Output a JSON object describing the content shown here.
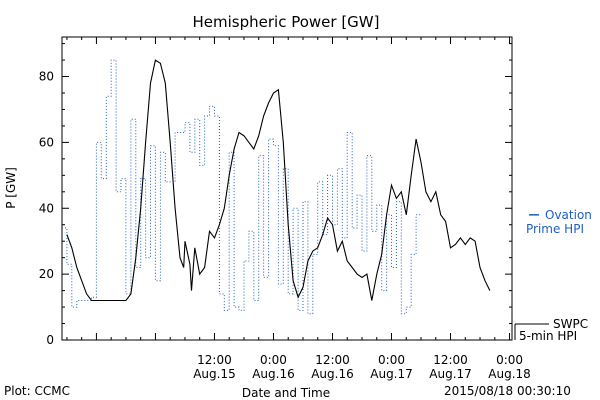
{
  "chart_data": {
    "type": "line",
    "title": "Hemispheric Power [GW]",
    "xlabel": "Date and Time",
    "ylabel": "P [GW]",
    "xlim": [
      "2015-08-14T05:00",
      "2015-08-18T00:30"
    ],
    "ylim": [
      0,
      92
    ],
    "yticks": [
      0,
      20,
      40,
      60,
      80
    ],
    "xticks": [
      {
        "t": "2015-08-15T12:00",
        "time": "12:00",
        "date": "Aug.15"
      },
      {
        "t": "2015-08-16T00:00",
        "time": "0:00",
        "date": "Aug.16"
      },
      {
        "t": "2015-08-16T12:00",
        "time": "12:00",
        "date": "Aug.16"
      },
      {
        "t": "2015-08-17T00:00",
        "time": "0:00",
        "date": "Aug.17"
      },
      {
        "t": "2015-08-17T12:00",
        "time": "12:00",
        "date": "Aug.17"
      },
      {
        "t": "2015-08-18T00:00",
        "time": "0:00",
        "date": "Aug.18"
      }
    ],
    "series": [
      {
        "name": "SWPC 5-min HPI",
        "color": "#000000",
        "style": "solid",
        "legend_lines": [
          "SWPC",
          "5-min HPI"
        ],
        "points": [
          [
            "2015-08-14T06:00",
            32
          ],
          [
            "2015-08-14T07:00",
            28
          ],
          [
            "2015-08-14T08:00",
            22
          ],
          [
            "2015-08-14T09:00",
            18
          ],
          [
            "2015-08-14T10:00",
            14
          ],
          [
            "2015-08-14T11:00",
            12
          ],
          [
            "2015-08-14T13:00",
            12
          ],
          [
            "2015-08-14T15:00",
            12
          ],
          [
            "2015-08-14T17:00",
            12
          ],
          [
            "2015-08-14T18:00",
            12
          ],
          [
            "2015-08-14T19:00",
            14
          ],
          [
            "2015-08-14T20:00",
            25
          ],
          [
            "2015-08-14T21:00",
            40
          ],
          [
            "2015-08-14T22:00",
            60
          ],
          [
            "2015-08-14T23:00",
            78
          ],
          [
            "2015-08-15T00:00",
            85
          ],
          [
            "2015-08-15T01:00",
            84
          ],
          [
            "2015-08-15T02:00",
            78
          ],
          [
            "2015-08-15T03:00",
            60
          ],
          [
            "2015-08-15T04:00",
            40
          ],
          [
            "2015-08-15T05:00",
            25
          ],
          [
            "2015-08-15T05:45",
            22
          ],
          [
            "2015-08-15T06:00",
            30
          ],
          [
            "2015-08-15T07:00",
            23
          ],
          [
            "2015-08-15T07:20",
            15
          ],
          [
            "2015-08-15T08:00",
            28
          ],
          [
            "2015-08-15T09:00",
            20
          ],
          [
            "2015-08-15T10:00",
            22
          ],
          [
            "2015-08-15T11:00",
            33
          ],
          [
            "2015-08-15T12:00",
            31
          ],
          [
            "2015-08-15T13:00",
            35
          ],
          [
            "2015-08-15T14:00",
            40
          ],
          [
            "2015-08-15T15:00",
            50
          ],
          [
            "2015-08-15T16:00",
            58
          ],
          [
            "2015-08-15T17:00",
            63
          ],
          [
            "2015-08-15T18:00",
            62
          ],
          [
            "2015-08-15T19:00",
            60
          ],
          [
            "2015-08-15T20:00",
            58
          ],
          [
            "2015-08-15T21:00",
            62
          ],
          [
            "2015-08-15T22:00",
            68
          ],
          [
            "2015-08-15T23:00",
            72
          ],
          [
            "2015-08-16T00:00",
            75
          ],
          [
            "2015-08-16T01:00",
            76
          ],
          [
            "2015-08-16T02:00",
            60
          ],
          [
            "2015-08-16T03:00",
            35
          ],
          [
            "2015-08-16T04:00",
            18
          ],
          [
            "2015-08-16T05:00",
            13
          ],
          [
            "2015-08-16T06:00",
            16
          ],
          [
            "2015-08-16T07:00",
            24
          ],
          [
            "2015-08-16T08:00",
            27
          ],
          [
            "2015-08-16T09:00",
            28
          ],
          [
            "2015-08-16T10:00",
            32
          ],
          [
            "2015-08-16T11:00",
            37
          ],
          [
            "2015-08-16T12:00",
            35
          ],
          [
            "2015-08-16T13:00",
            27
          ],
          [
            "2015-08-16T14:00",
            30
          ],
          [
            "2015-08-16T15:00",
            24
          ],
          [
            "2015-08-16T16:00",
            22
          ],
          [
            "2015-08-16T17:00",
            20
          ],
          [
            "2015-08-16T18:00",
            19
          ],
          [
            "2015-08-16T19:00",
            20
          ],
          [
            "2015-08-16T20:00",
            12
          ],
          [
            "2015-08-16T21:00",
            20
          ],
          [
            "2015-08-16T22:00",
            26
          ],
          [
            "2015-08-16T23:00",
            38
          ],
          [
            "2015-08-17T00:00",
            47
          ],
          [
            "2015-08-17T01:00",
            43
          ],
          [
            "2015-08-17T02:00",
            45
          ],
          [
            "2015-08-17T03:00",
            38
          ],
          [
            "2015-08-17T04:00",
            50
          ],
          [
            "2015-08-17T05:00",
            61
          ],
          [
            "2015-08-17T06:00",
            54
          ],
          [
            "2015-08-17T07:00",
            45
          ],
          [
            "2015-08-17T08:00",
            42
          ],
          [
            "2015-08-17T09:00",
            45
          ],
          [
            "2015-08-17T10:00",
            38
          ],
          [
            "2015-08-17T11:00",
            36
          ],
          [
            "2015-08-17T12:00",
            28
          ],
          [
            "2015-08-17T13:00",
            29
          ],
          [
            "2015-08-17T14:00",
            31
          ],
          [
            "2015-08-17T15:00",
            29
          ],
          [
            "2015-08-17T16:00",
            31
          ],
          [
            "2015-08-17T17:00",
            30
          ],
          [
            "2015-08-17T18:00",
            22
          ],
          [
            "2015-08-17T19:00",
            18
          ],
          [
            "2015-08-17T20:00",
            15
          ]
        ]
      },
      {
        "name": "Ovation Prime HPI",
        "color": "#1f5fbf",
        "style": "dotted-step",
        "legend_lines": [
          "Ovation",
          "Prime HPI"
        ],
        "latest_value": 38,
        "points": [
          [
            "2015-08-14T05:00",
            34
          ],
          [
            "2015-08-14T06:00",
            23
          ],
          [
            "2015-08-14T07:00",
            10
          ],
          [
            "2015-08-14T08:00",
            12
          ],
          [
            "2015-08-14T11:00",
            13
          ],
          [
            "2015-08-14T12:00",
            60
          ],
          [
            "2015-08-14T13:00",
            49
          ],
          [
            "2015-08-14T14:00",
            74
          ],
          [
            "2015-08-14T15:00",
            85
          ],
          [
            "2015-08-14T16:00",
            45
          ],
          [
            "2015-08-14T17:00",
            49
          ],
          [
            "2015-08-14T18:00",
            14
          ],
          [
            "2015-08-14T19:00",
            67
          ],
          [
            "2015-08-14T20:00",
            22
          ],
          [
            "2015-08-14T21:00",
            49
          ],
          [
            "2015-08-14T22:00",
            25
          ],
          [
            "2015-08-14T23:00",
            59
          ],
          [
            "2015-08-15T00:00",
            18
          ],
          [
            "2015-08-15T01:00",
            57
          ],
          [
            "2015-08-15T02:00",
            48
          ],
          [
            "2015-08-15T03:00",
            48
          ],
          [
            "2015-08-15T04:00",
            63
          ],
          [
            "2015-08-15T06:00",
            66
          ],
          [
            "2015-08-15T07:00",
            57
          ],
          [
            "2015-08-15T08:00",
            67
          ],
          [
            "2015-08-15T09:00",
            53
          ],
          [
            "2015-08-15T10:00",
            68
          ],
          [
            "2015-08-15T11:00",
            71
          ],
          [
            "2015-08-15T12:00",
            68
          ],
          [
            "2015-08-15T13:00",
            14
          ],
          [
            "2015-08-15T14:00",
            9
          ],
          [
            "2015-08-15T15:00",
            57
          ],
          [
            "2015-08-15T16:00",
            10
          ],
          [
            "2015-08-15T17:00",
            9
          ],
          [
            "2015-08-15T18:00",
            24
          ],
          [
            "2015-08-15T19:00",
            33
          ],
          [
            "2015-08-15T20:00",
            12
          ],
          [
            "2015-08-15T21:00",
            56
          ],
          [
            "2015-08-15T22:00",
            19
          ],
          [
            "2015-08-15T23:00",
            61
          ],
          [
            "2015-08-16T00:00",
            59
          ],
          [
            "2015-08-16T01:00",
            17
          ],
          [
            "2015-08-16T02:00",
            52
          ],
          [
            "2015-08-16T03:00",
            14
          ],
          [
            "2015-08-16T04:00",
            40
          ],
          [
            "2015-08-16T05:00",
            9
          ],
          [
            "2015-08-16T06:00",
            42
          ],
          [
            "2015-08-16T07:00",
            8
          ],
          [
            "2015-08-16T08:00",
            26
          ],
          [
            "2015-08-16T09:00",
            48
          ],
          [
            "2015-08-16T10:00",
            32
          ],
          [
            "2015-08-16T11:00",
            50
          ],
          [
            "2015-08-16T12:00",
            35
          ],
          [
            "2015-08-16T13:00",
            52
          ],
          [
            "2015-08-16T14:00",
            31
          ],
          [
            "2015-08-16T15:00",
            63
          ],
          [
            "2015-08-16T16:00",
            34
          ],
          [
            "2015-08-16T17:00",
            44
          ],
          [
            "2015-08-16T18:00",
            27
          ],
          [
            "2015-08-16T19:00",
            56
          ],
          [
            "2015-08-16T20:00",
            33
          ],
          [
            "2015-08-16T21:00",
            41
          ],
          [
            "2015-08-16T22:00",
            15
          ],
          [
            "2015-08-16T23:00",
            38
          ],
          [
            "2015-08-17T00:00",
            22
          ],
          [
            "2015-08-17T01:00",
            42
          ],
          [
            "2015-08-17T02:00",
            8
          ],
          [
            "2015-08-17T03:00",
            10
          ],
          [
            "2015-08-17T04:00",
            26
          ],
          [
            "2015-08-17T05:00",
            38
          ]
        ]
      }
    ]
  },
  "footer": {
    "left": "Plot: CCMC",
    "right": "2015/08/18 00:30:10"
  }
}
